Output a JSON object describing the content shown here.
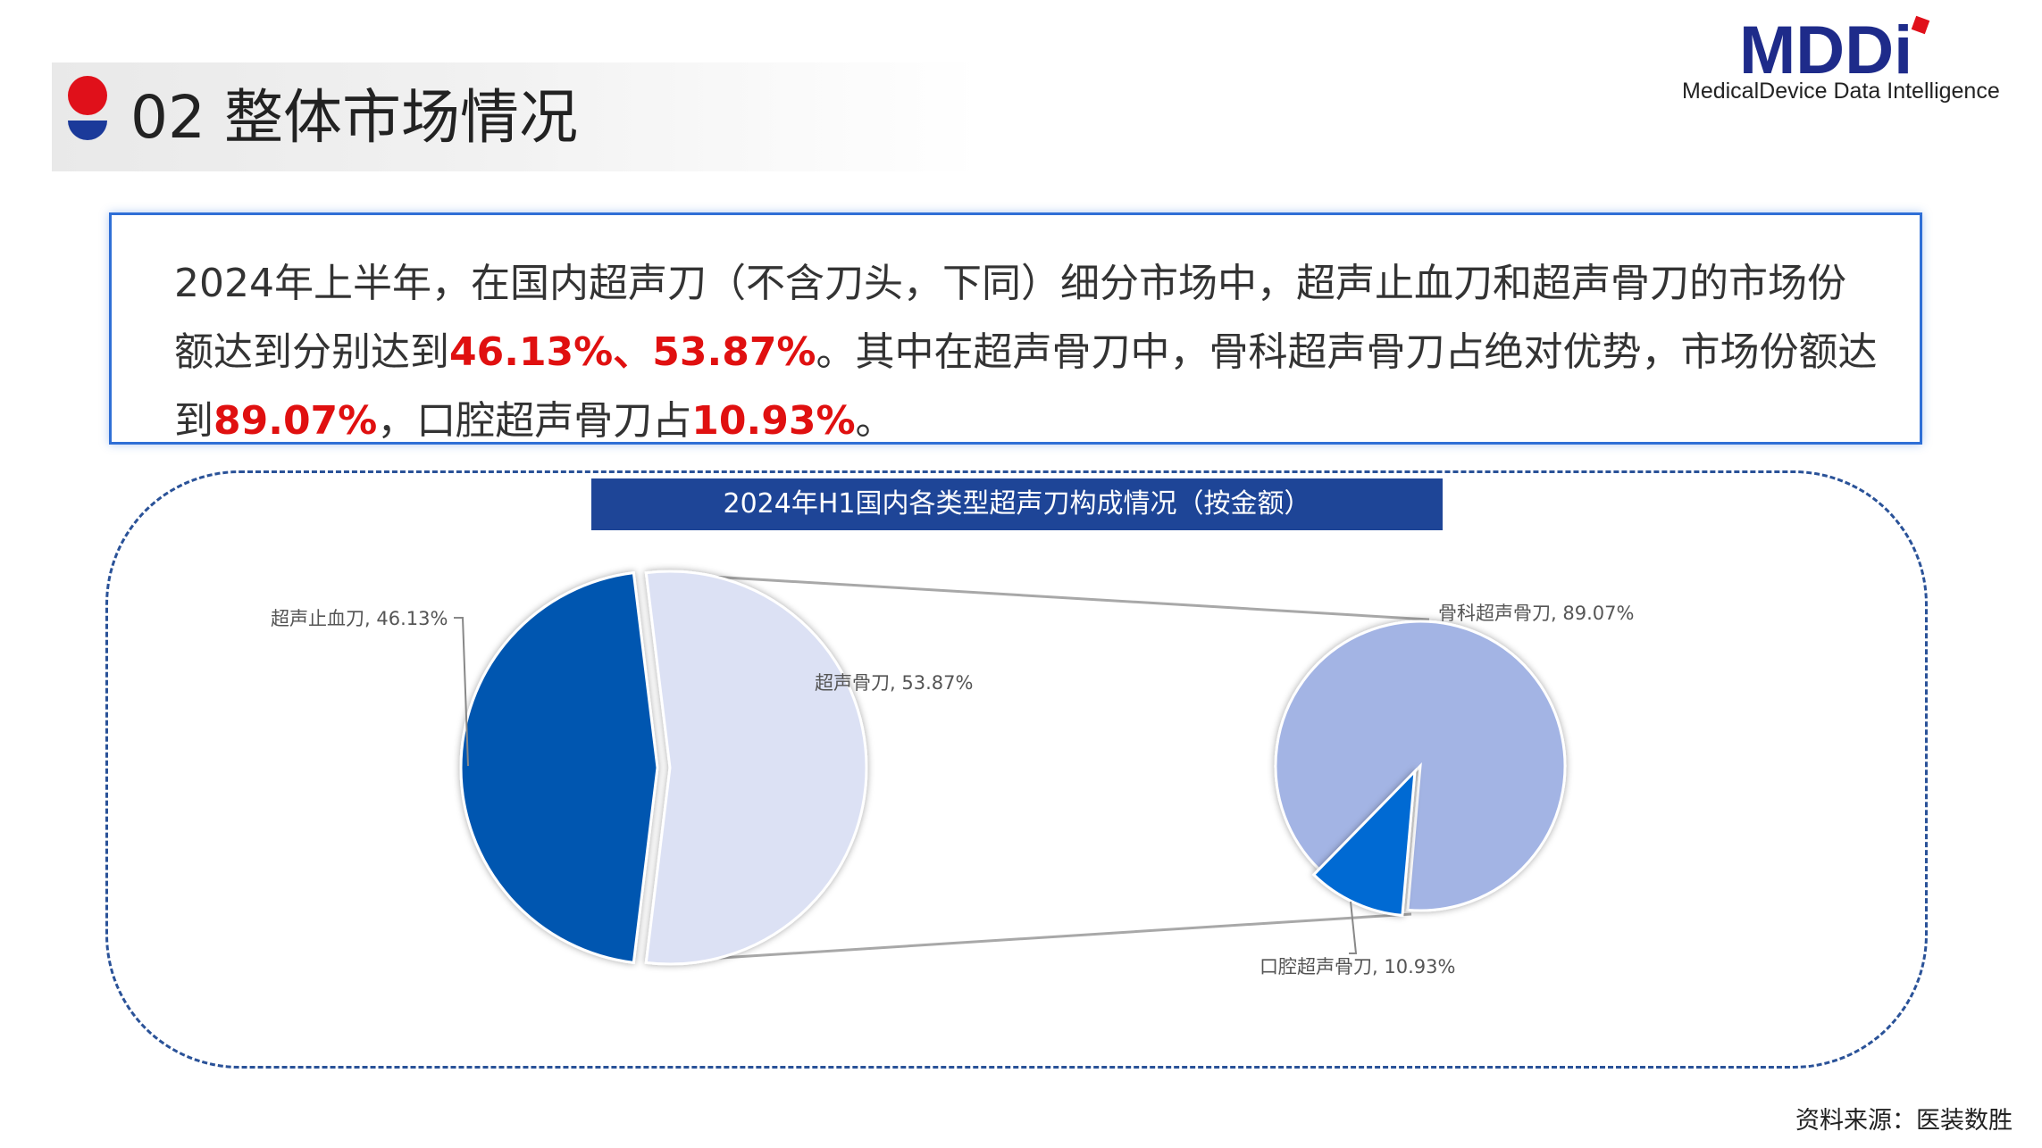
{
  "header": {
    "title": "02 整体市场情况"
  },
  "logo": {
    "mark": "MDDi",
    "tagline": "MedicalDevice Data Intelligence"
  },
  "summary": {
    "part1": "2024年上半年，在国内超声刀（不含刀头，下同）细分市场中，超声止血刀和超声骨刀的市场份额达到分别达到",
    "highlight1": "46.13%、53.87%",
    "part2": "。其中在超声骨刀中，骨科超声骨刀占绝对优势，市场份额达到",
    "highlight2": "89.07%",
    "part3": "，口腔超声骨刀占",
    "highlight3": "10.93%",
    "part4": "。"
  },
  "chart_data": [
    {
      "type": "pie",
      "title": "2024年H1国内各类型超声刀构成情况（按金额）",
      "categories": [
        "超声止血刀",
        "超声骨刀"
      ],
      "values": [
        46.13,
        53.87
      ],
      "labels": [
        "超声止血刀, 46.13%",
        "超声骨刀, 53.87%"
      ],
      "colors": [
        "#0057b0",
        "#dce1f4"
      ]
    },
    {
      "type": "pie",
      "categories": [
        "骨科超声骨刀",
        "口腔超声骨刀"
      ],
      "values": [
        89.07,
        10.93
      ],
      "labels": [
        "骨科超声骨刀, 89.07%",
        "口腔超声骨刀, 10.93%"
      ],
      "colors": [
        "#a3b4e4",
        "#006ad3"
      ]
    }
  ],
  "footer": {
    "source": "资料来源：医装数胜"
  }
}
